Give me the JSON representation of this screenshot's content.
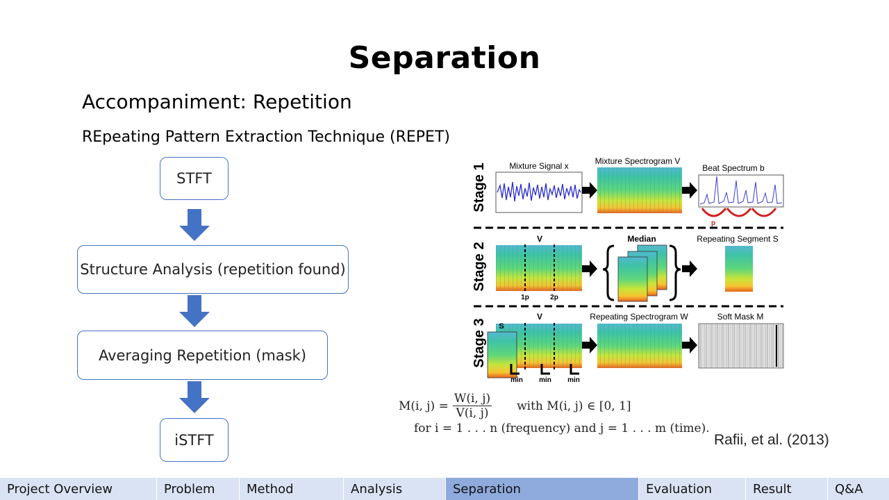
{
  "slide": {
    "title": "Separation",
    "subtitle": "Accompaniment: Repetition",
    "technique": "REpeating Pattern Extraction Technique (REPET)"
  },
  "flowchart": {
    "steps": [
      "STFT",
      "Structure Analysis (repetition found)",
      "Averaging Repetition (mask)",
      "iSTFT"
    ],
    "arrow_color": "#4472c4"
  },
  "figure": {
    "stage_labels": [
      "Stage 1",
      "Stage 2",
      "Stage 3"
    ],
    "stage1": {
      "mixture_signal": "Mixture Signal x",
      "mixture_spectrogram": "Mixture Spectrogram V",
      "beat_spectrum": "Beat Spectrum b",
      "period": "p"
    },
    "stage2": {
      "v_label": "V",
      "median": "Median",
      "repeating_segment": "Repeating Segment S",
      "tick1": "1p",
      "tick2": "2p"
    },
    "stage3": {
      "s_label": "S",
      "v_label": "V",
      "repeating_spectrogram": "Repeating Spectrogram W",
      "soft_mask": "Soft Mask M",
      "min_label": "min"
    }
  },
  "formula": {
    "line1_lhs": "M(i, j) =",
    "numerator": "W(i, j)",
    "denominator": "V(i, j)",
    "line1_rhs": "with M(i, j) ∈ [0, 1]",
    "line2": "for  i = 1 . . . n  (frequency) and  j = 1 . . . m (time)."
  },
  "citation": "Rafii, et al. (2013)",
  "nav": {
    "items": [
      "Project Overview",
      "Problem",
      "Method",
      "Analysis",
      "Separation",
      "Evaluation",
      "Result",
      "Q&A"
    ],
    "active": "Separation",
    "colors": {
      "normal": "#dae3f3",
      "active": "#8faadc"
    }
  }
}
